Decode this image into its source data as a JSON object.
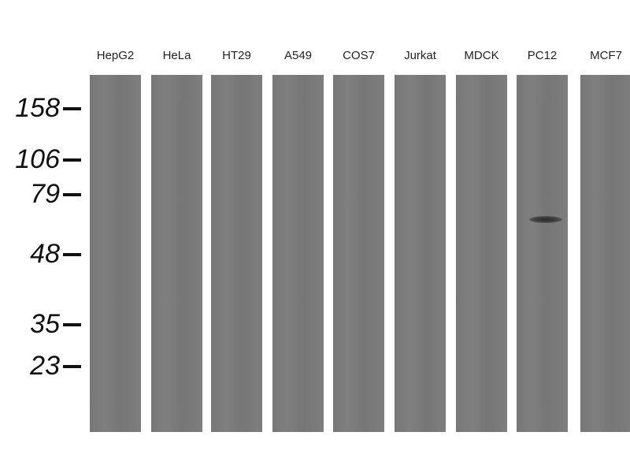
{
  "lanes": [
    "HepG2",
    "HeLa",
    "HT29",
    "A549",
    "COS7",
    "Jurkat",
    "MDCK",
    "PC12",
    "MCF7"
  ],
  "markers": [
    "158",
    "106",
    "79",
    "48",
    "35",
    "23"
  ],
  "bands": [
    {
      "lane": "PC12",
      "marker_region": "between 79 and 48",
      "intensity": "strong"
    }
  ],
  "colors": {
    "lane": "#7b7b7b",
    "band": "#2b2b2b",
    "background": "#ffffff"
  }
}
